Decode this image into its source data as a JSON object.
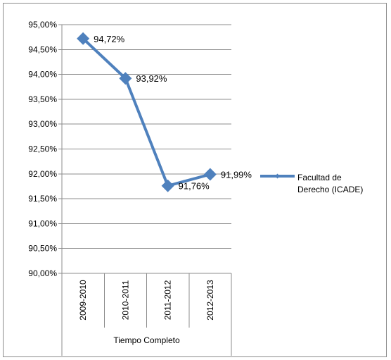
{
  "chart_data": {
    "type": "line",
    "categories": [
      "2009-2010",
      "2010-2011",
      "2011-2012",
      "2012-2013"
    ],
    "group_label": "Tiempo Completo",
    "series": [
      {
        "name": "Facultad de Derecho  (ICADE)",
        "values": [
          94.72,
          93.92,
          91.76,
          91.99
        ],
        "data_labels": [
          "94,72%",
          "93,92%",
          "91,76%",
          "91,99%"
        ],
        "color": "#4f81bd"
      }
    ],
    "ylim": [
      90,
      95
    ],
    "yticks": [
      95,
      94.5,
      94,
      93.5,
      93,
      92.5,
      92,
      91.5,
      91,
      90.5,
      90
    ],
    "ytick_labels": [
      "95,00%",
      "94,50%",
      "94,00%",
      "93,50%",
      "93,00%",
      "92,50%",
      "92,00%",
      "91,50%",
      "91,00%",
      "90,50%",
      "90,00%"
    ],
    "grid": true,
    "legend_position": "right",
    "legend_lines": [
      "Facultad de",
      "Derecho  (ICADE)"
    ]
  }
}
